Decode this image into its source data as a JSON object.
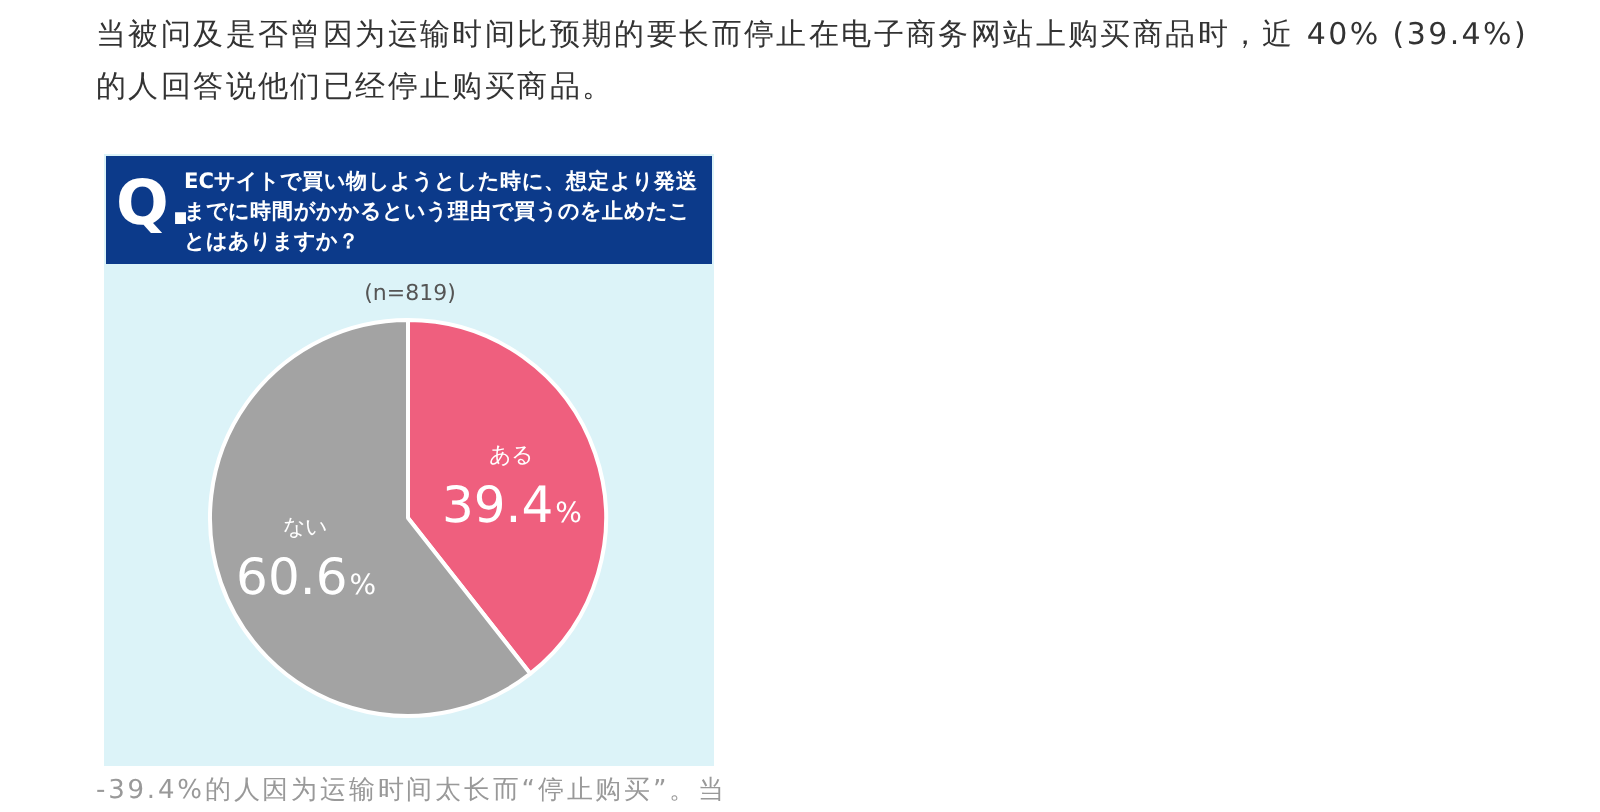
{
  "chart_data": {
    "type": "pie",
    "title": "ECサイトで買い物しようとした時に、想定より発送までに時間がかかるという理由で買うのを止めたことはありますか？",
    "subtitle": "(n=819)",
    "categories": [
      "ある",
      "ない"
    ],
    "values": [
      39.4,
      60.6
    ],
    "colors": [
      "#ef5f7e",
      "#a3a3a3"
    ],
    "value_labels": [
      "39.4%",
      "60.6%"
    ],
    "annotations": [
      "当被问及是否曾因为运输时间比预期的要长而停止在电子商务网站上购买商品时，近 40% (39.4%) 的人回答说他们已经停止购买商品。",
      "Q.",
      "-39.4%的人因为运输时间太长而“停止购买”。当"
    ]
  }
}
